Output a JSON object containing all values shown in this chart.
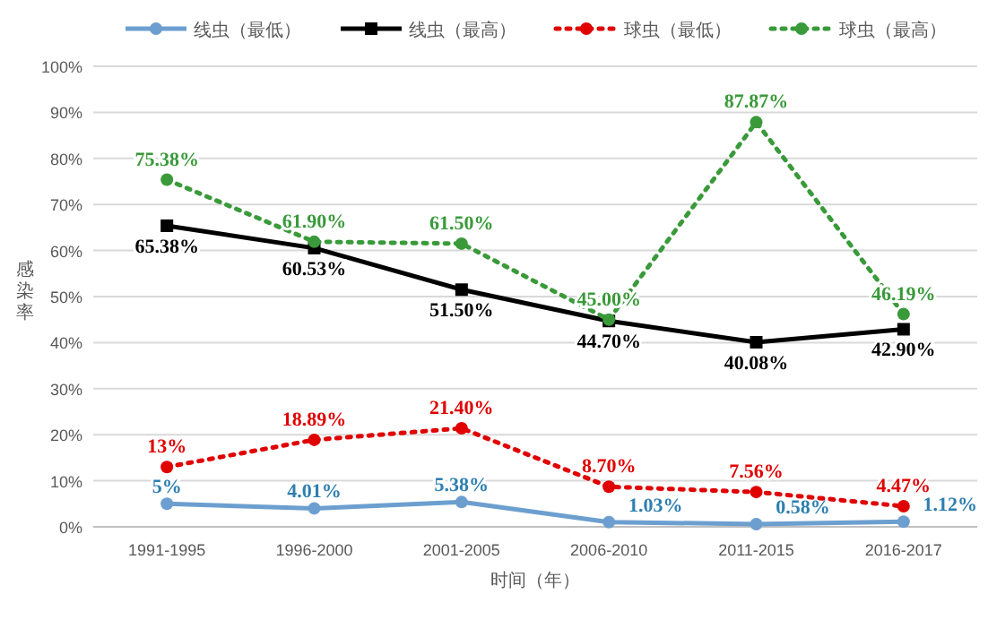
{
  "chart_data": {
    "type": "line",
    "xlabel": "时间（年）",
    "ylabel": "感染率",
    "categories": [
      "1991-1995",
      "1996-2000",
      "2001-2005",
      "2006-2010",
      "2011-2015",
      "2016-2017"
    ],
    "ylim": [
      0,
      100
    ],
    "yticks": [
      {
        "value": 0,
        "label": "0%"
      },
      {
        "value": 10,
        "label": "10%"
      },
      {
        "value": 20,
        "label": "20%"
      },
      {
        "value": 30,
        "label": "30%"
      },
      {
        "value": 40,
        "label": "40%"
      },
      {
        "value": 50,
        "label": "50%"
      },
      {
        "value": 60,
        "label": "60%"
      },
      {
        "value": 70,
        "label": "70%"
      },
      {
        "value": 80,
        "label": "80%"
      },
      {
        "value": 90,
        "label": "90%"
      },
      {
        "value": 100,
        "label": "100%"
      }
    ],
    "grid": "y",
    "legend": "top",
    "series": [
      {
        "name": "线虫（最低）",
        "color": "#6c9fcf",
        "marker": "circle",
        "line_style": "solid",
        "values": [
          5,
          4.01,
          5.38,
          1.03,
          0.58,
          1.12
        ],
        "value_labels": [
          "5%",
          "4.01%",
          "5.38%",
          "1.03%",
          "0.58%",
          "1.12%"
        ]
      },
      {
        "name": "线虫（最高）",
        "color": "#000000",
        "marker": "square",
        "line_style": "solid",
        "values": [
          65.38,
          60.53,
          51.5,
          44.7,
          40.08,
          42.9
        ],
        "value_labels": [
          "65.38%",
          "60.53%",
          "51.50%",
          "44.70%",
          "40.08%",
          "42.90%"
        ]
      },
      {
        "name": "球虫（最低）",
        "color": "#e00000",
        "marker": "circle",
        "line_style": "dotted",
        "values": [
          13,
          18.89,
          21.4,
          8.7,
          7.56,
          4.47
        ],
        "value_labels": [
          "13%",
          "18.89%",
          "21.40%",
          "8.70%",
          "7.56%",
          "4.47%"
        ]
      },
      {
        "name": "球虫（最高）",
        "color": "#3a9a3a",
        "marker": "circle",
        "line_style": "dotted",
        "values": [
          75.38,
          61.9,
          61.5,
          45.0,
          87.87,
          46.19
        ],
        "value_labels": [
          "75.38%",
          "61.90%",
          "61.50%",
          "45.00%",
          "87.87%",
          "46.19%"
        ]
      }
    ]
  }
}
